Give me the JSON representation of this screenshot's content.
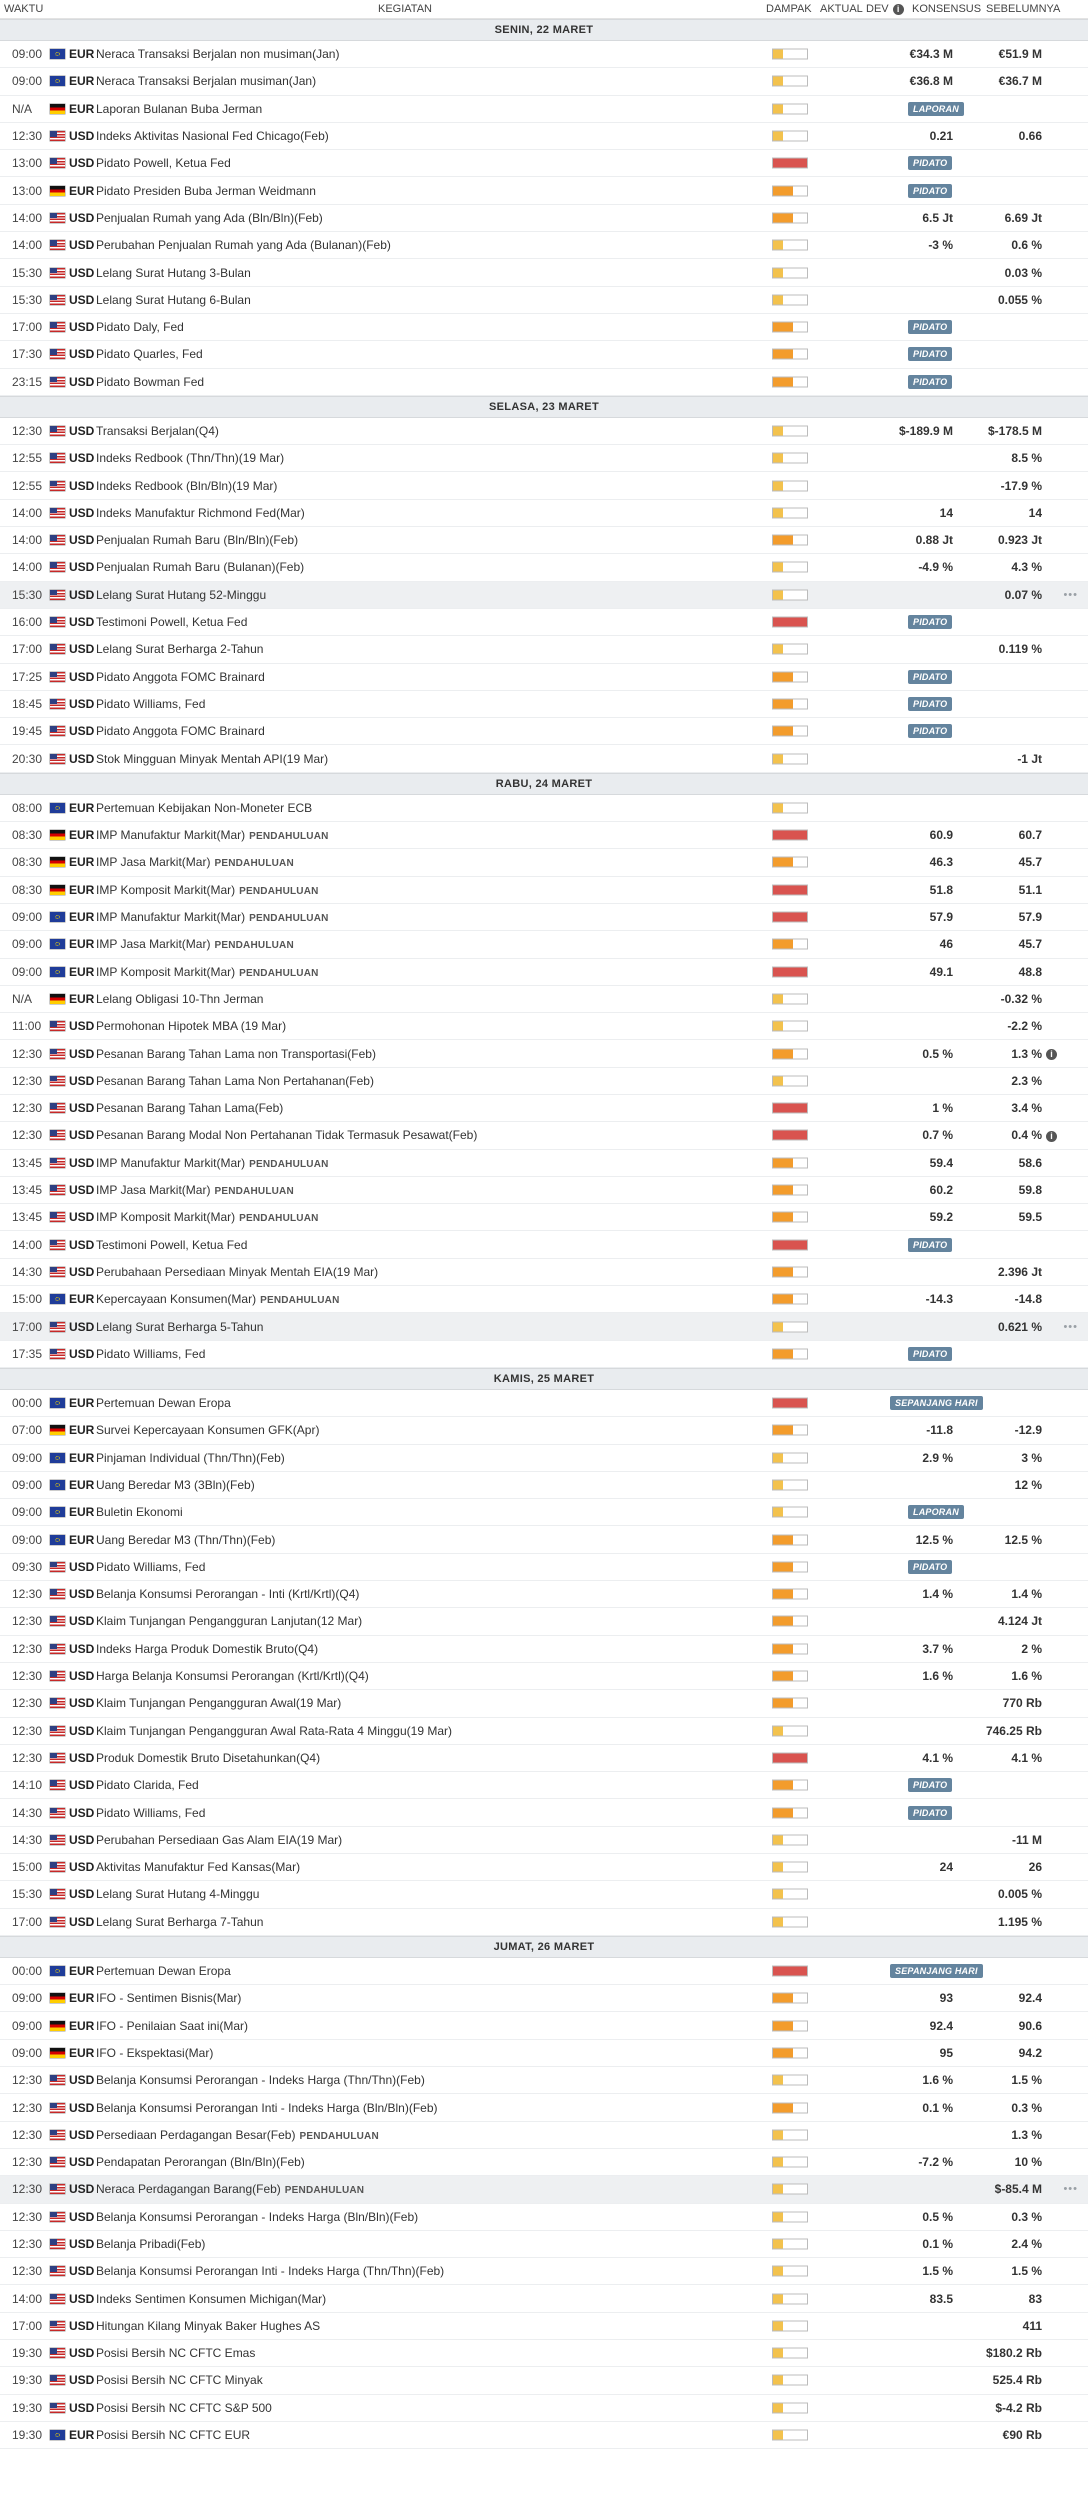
{
  "header": {
    "waktu": "WAKTU",
    "kegiatan": "KEGIATAN",
    "dampak": "DAMPAK",
    "aktual": "AKTUAL",
    "dev": "DEV",
    "konsensus": "KONSENSUS",
    "sebelumnya": "SEBELUMNYA"
  },
  "days": [
    {
      "label": "SENIN, 22 MARET",
      "events": [
        {
          "time": "09:00",
          "flag": "eu",
          "cur": "EUR",
          "name": "Neraca Transaksi Berjalan non musiman(Jan)",
          "impact": "low",
          "cons": "€34.3 M",
          "prev": "€51.9 M"
        },
        {
          "time": "09:00",
          "flag": "eu",
          "cur": "EUR",
          "name": "Neraca Transaksi Berjalan musiman(Jan)",
          "impact": "low",
          "cons": "€36.8 M",
          "prev": "€36.7 M"
        },
        {
          "time": "N/A",
          "flag": "de",
          "cur": "EUR",
          "name": "Laporan Bulanan Buba Jerman",
          "impact": "low",
          "badge": "LAPORAN"
        },
        {
          "time": "12:30",
          "flag": "us",
          "cur": "USD",
          "name": "Indeks Aktivitas Nasional Fed Chicago(Feb)",
          "impact": "low",
          "cons": "0.21",
          "prev": "0.66"
        },
        {
          "time": "13:00",
          "flag": "us",
          "cur": "USD",
          "name": "Pidato Powell, Ketua Fed",
          "impact": "high",
          "badge": "PIDATO"
        },
        {
          "time": "13:00",
          "flag": "de",
          "cur": "EUR",
          "name": "Pidato Presiden Buba Jerman Weidmann",
          "impact": "med",
          "badge": "PIDATO"
        },
        {
          "time": "14:00",
          "flag": "us",
          "cur": "USD",
          "name": "Penjualan Rumah yang Ada (Bln/Bln)(Feb)",
          "impact": "med",
          "cons": "6.5 Jt",
          "prev": "6.69 Jt"
        },
        {
          "time": "14:00",
          "flag": "us",
          "cur": "USD",
          "name": "Perubahan Penjualan Rumah yang Ada (Bulanan)(Feb)",
          "impact": "low",
          "cons": "-3 %",
          "prev": "0.6 %"
        },
        {
          "time": "15:30",
          "flag": "us",
          "cur": "USD",
          "name": "Lelang Surat Hutang 3-Bulan",
          "impact": "low",
          "prev": "0.03 %"
        },
        {
          "time": "15:30",
          "flag": "us",
          "cur": "USD",
          "name": "Lelang Surat Hutang 6-Bulan",
          "impact": "low",
          "prev": "0.055 %"
        },
        {
          "time": "17:00",
          "flag": "us",
          "cur": "USD",
          "name": "Pidato Daly, Fed",
          "impact": "med",
          "badge": "PIDATO"
        },
        {
          "time": "17:30",
          "flag": "us",
          "cur": "USD",
          "name": "Pidato Quarles, Fed",
          "impact": "med",
          "badge": "PIDATO"
        },
        {
          "time": "23:15",
          "flag": "us",
          "cur": "USD",
          "name": "Pidato Bowman Fed",
          "impact": "med",
          "badge": "PIDATO"
        }
      ]
    },
    {
      "label": "SELASA, 23 MARET",
      "events": [
        {
          "time": "12:30",
          "flag": "us",
          "cur": "USD",
          "name": "Transaksi Berjalan(Q4)",
          "impact": "low",
          "cons": "$-189.9 M",
          "prev": "$-178.5 M"
        },
        {
          "time": "12:55",
          "flag": "us",
          "cur": "USD",
          "name": "Indeks Redbook (Thn/Thn)(19 Mar)",
          "impact": "low",
          "prev": "8.5 %"
        },
        {
          "time": "12:55",
          "flag": "us",
          "cur": "USD",
          "name": "Indeks Redbook (Bln/Bln)(19 Mar)",
          "impact": "low",
          "prev": "-17.9 %"
        },
        {
          "time": "14:00",
          "flag": "us",
          "cur": "USD",
          "name": "Indeks Manufaktur Richmond Fed(Mar)",
          "impact": "low",
          "cons": "14",
          "prev": "14"
        },
        {
          "time": "14:00",
          "flag": "us",
          "cur": "USD",
          "name": "Penjualan Rumah Baru (Bln/Bln)(Feb)",
          "impact": "med",
          "cons": "0.88 Jt",
          "prev": "0.923 Jt"
        },
        {
          "time": "14:00",
          "flag": "us",
          "cur": "USD",
          "name": "Penjualan Rumah Baru (Bulanan)(Feb)",
          "impact": "low",
          "cons": "-4.9 %",
          "prev": "4.3 %"
        },
        {
          "time": "15:30",
          "flag": "us",
          "cur": "USD",
          "name": "Lelang Surat Hutang 52-Minggu",
          "impact": "low",
          "prev": "0.07 %",
          "highlight": true,
          "more": "•••"
        },
        {
          "time": "16:00",
          "flag": "us",
          "cur": "USD",
          "name": "Testimoni Powell, Ketua Fed",
          "impact": "high",
          "badge": "PIDATO"
        },
        {
          "time": "17:00",
          "flag": "us",
          "cur": "USD",
          "name": "Lelang Surat Berharga 2-Tahun",
          "impact": "low",
          "prev": "0.119 %"
        },
        {
          "time": "17:25",
          "flag": "us",
          "cur": "USD",
          "name": "Pidato Anggota FOMC Brainard",
          "impact": "med",
          "badge": "PIDATO"
        },
        {
          "time": "18:45",
          "flag": "us",
          "cur": "USD",
          "name": "Pidato Williams, Fed",
          "impact": "med",
          "badge": "PIDATO"
        },
        {
          "time": "19:45",
          "flag": "us",
          "cur": "USD",
          "name": "Pidato Anggota FOMC Brainard",
          "impact": "med",
          "badge": "PIDATO"
        },
        {
          "time": "20:30",
          "flag": "us",
          "cur": "USD",
          "name": "Stok Mingguan Minyak Mentah API(19 Mar)",
          "impact": "low",
          "prev": "-1 Jt"
        }
      ]
    },
    {
      "label": "RABU, 24 MARET",
      "events": [
        {
          "time": "08:00",
          "flag": "eu",
          "cur": "EUR",
          "name": "Pertemuan Kebijakan Non-Moneter ECB",
          "impact": "low"
        },
        {
          "time": "08:30",
          "flag": "de",
          "cur": "EUR",
          "name": "IMP Manufaktur Markit(Mar)",
          "tag": "PENDAHULUAN",
          "impact": "high",
          "cons": "60.9",
          "prev": "60.7"
        },
        {
          "time": "08:30",
          "flag": "de",
          "cur": "EUR",
          "name": "IMP Jasa Markit(Mar)",
          "tag": "PENDAHULUAN",
          "impact": "med",
          "cons": "46.3",
          "prev": "45.7"
        },
        {
          "time": "08:30",
          "flag": "de",
          "cur": "EUR",
          "name": "IMP Komposit Markit(Mar)",
          "tag": "PENDAHULUAN",
          "impact": "high",
          "cons": "51.8",
          "prev": "51.1"
        },
        {
          "time": "09:00",
          "flag": "eu",
          "cur": "EUR",
          "name": "IMP Manufaktur Markit(Mar)",
          "tag": "PENDAHULUAN",
          "impact": "high",
          "cons": "57.9",
          "prev": "57.9"
        },
        {
          "time": "09:00",
          "flag": "eu",
          "cur": "EUR",
          "name": "IMP Jasa Markit(Mar)",
          "tag": "PENDAHULUAN",
          "impact": "med",
          "cons": "46",
          "prev": "45.7"
        },
        {
          "time": "09:00",
          "flag": "eu",
          "cur": "EUR",
          "name": "IMP Komposit Markit(Mar)",
          "tag": "PENDAHULUAN",
          "impact": "high",
          "cons": "49.1",
          "prev": "48.8"
        },
        {
          "time": "N/A",
          "flag": "de",
          "cur": "EUR",
          "name": "Lelang Obligasi 10-Thn Jerman",
          "impact": "low",
          "prev": "-0.32 %"
        },
        {
          "time": "11:00",
          "flag": "us",
          "cur": "USD",
          "name": "Permohonan Hipotek MBA (19 Mar)",
          "impact": "low",
          "prev": "-2.2 %"
        },
        {
          "time": "12:30",
          "flag": "us",
          "cur": "USD",
          "name": "Pesanan Barang Tahan Lama non Transportasi(Feb)",
          "impact": "med",
          "cons": "0.5 %",
          "prev": "1.3 %",
          "info": true
        },
        {
          "time": "12:30",
          "flag": "us",
          "cur": "USD",
          "name": "Pesanan Barang Tahan Lama Non Pertahanan(Feb)",
          "impact": "low",
          "prev": "2.3 %"
        },
        {
          "time": "12:30",
          "flag": "us",
          "cur": "USD",
          "name": "Pesanan Barang Tahan Lama(Feb)",
          "impact": "high",
          "cons": "1 %",
          "prev": "3.4 %"
        },
        {
          "time": "12:30",
          "flag": "us",
          "cur": "USD",
          "name": "Pesanan Barang Modal Non Pertahanan Tidak Termasuk Pesawat(Feb)",
          "impact": "high",
          "cons": "0.7 %",
          "prev": "0.4 %",
          "info": true
        },
        {
          "time": "13:45",
          "flag": "us",
          "cur": "USD",
          "name": "IMP Manufaktur Markit(Mar)",
          "tag": "PENDAHULUAN",
          "impact": "med",
          "cons": "59.4",
          "prev": "58.6"
        },
        {
          "time": "13:45",
          "flag": "us",
          "cur": "USD",
          "name": "IMP Jasa Markit(Mar)",
          "tag": "PENDAHULUAN",
          "impact": "med",
          "cons": "60.2",
          "prev": "59.8"
        },
        {
          "time": "13:45",
          "flag": "us",
          "cur": "USD",
          "name": "IMP Komposit Markit(Mar)",
          "tag": "PENDAHULUAN",
          "impact": "med",
          "cons": "59.2",
          "prev": "59.5"
        },
        {
          "time": "14:00",
          "flag": "us",
          "cur": "USD",
          "name": "Testimoni Powell, Ketua Fed",
          "impact": "high",
          "badge": "PIDATO"
        },
        {
          "time": "14:30",
          "flag": "us",
          "cur": "USD",
          "name": "Perubahaan Persediaan Minyak Mentah EIA(19 Mar)",
          "impact": "med",
          "prev": "2.396 Jt"
        },
        {
          "time": "15:00",
          "flag": "eu",
          "cur": "EUR",
          "name": "Kepercayaan Konsumen(Mar)",
          "tag": "PENDAHULUAN",
          "impact": "med",
          "cons": "-14.3",
          "prev": "-14.8"
        },
        {
          "time": "17:00",
          "flag": "us",
          "cur": "USD",
          "name": "Lelang Surat Berharga 5-Tahun",
          "impact": "low",
          "prev": "0.621 %",
          "highlight": true,
          "more": "•••"
        },
        {
          "time": "17:35",
          "flag": "us",
          "cur": "USD",
          "name": "Pidato Williams, Fed",
          "impact": "med",
          "badge": "PIDATO"
        }
      ]
    },
    {
      "label": "KAMIS, 25 MARET",
      "events": [
        {
          "time": "00:00",
          "flag": "eu",
          "cur": "EUR",
          "name": "Pertemuan Dewan Eropa",
          "impact": "high",
          "badge": "SEPANJANG HARI",
          "wide": true
        },
        {
          "time": "07:00",
          "flag": "de",
          "cur": "EUR",
          "name": "Survei Kepercayaan Konsumen GFK(Apr)",
          "impact": "med",
          "cons": "-11.8",
          "prev": "-12.9"
        },
        {
          "time": "09:00",
          "flag": "eu",
          "cur": "EUR",
          "name": "Pinjaman Individual (Thn/Thn)(Feb)",
          "impact": "low",
          "cons": "2.9 %",
          "prev": "3 %"
        },
        {
          "time": "09:00",
          "flag": "eu",
          "cur": "EUR",
          "name": "Uang Beredar M3 (3Bln)(Feb)",
          "impact": "low",
          "prev": "12 %"
        },
        {
          "time": "09:00",
          "flag": "eu",
          "cur": "EUR",
          "name": "Buletin Ekonomi",
          "impact": "low",
          "badge": "LAPORAN"
        },
        {
          "time": "09:00",
          "flag": "eu",
          "cur": "EUR",
          "name": "Uang Beredar M3 (Thn/Thn)(Feb)",
          "impact": "med",
          "cons": "12.5 %",
          "prev": "12.5 %"
        },
        {
          "time": "09:30",
          "flag": "us",
          "cur": "USD",
          "name": "Pidato Williams, Fed",
          "impact": "med",
          "badge": "PIDATO"
        },
        {
          "time": "12:30",
          "flag": "us",
          "cur": "USD",
          "name": "Belanja Konsumsi Perorangan - Inti (Krtl/Krtl)(Q4)",
          "impact": "med",
          "cons": "1.4 %",
          "prev": "1.4 %"
        },
        {
          "time": "12:30",
          "flag": "us",
          "cur": "USD",
          "name": "Klaim Tunjangan Pengangguran Lanjutan(12 Mar)",
          "impact": "med",
          "prev": "4.124 Jt"
        },
        {
          "time": "12:30",
          "flag": "us",
          "cur": "USD",
          "name": "Indeks Harga Produk Domestik Bruto(Q4)",
          "impact": "med",
          "cons": "3.7 %",
          "prev": "2 %"
        },
        {
          "time": "12:30",
          "flag": "us",
          "cur": "USD",
          "name": "Harga Belanja Konsumsi Perorangan (Krtl/Krtl)(Q4)",
          "impact": "med",
          "cons": "1.6 %",
          "prev": "1.6 %"
        },
        {
          "time": "12:30",
          "flag": "us",
          "cur": "USD",
          "name": "Klaim Tunjangan Pengangguran Awal(19 Mar)",
          "impact": "med",
          "prev": "770 Rb"
        },
        {
          "time": "12:30",
          "flag": "us",
          "cur": "USD",
          "name": "Klaim Tunjangan Pengangguran Awal Rata-Rata 4 Minggu(19 Mar)",
          "impact": "low",
          "prev": "746.25 Rb"
        },
        {
          "time": "12:30",
          "flag": "us",
          "cur": "USD",
          "name": "Produk Domestik Bruto Disetahunkan(Q4)",
          "impact": "high",
          "cons": "4.1 %",
          "prev": "4.1 %"
        },
        {
          "time": "14:10",
          "flag": "us",
          "cur": "USD",
          "name": "Pidato Clarida, Fed",
          "impact": "med",
          "badge": "PIDATO"
        },
        {
          "time": "14:30",
          "flag": "us",
          "cur": "USD",
          "name": "Pidato Williams, Fed",
          "impact": "med",
          "badge": "PIDATO"
        },
        {
          "time": "14:30",
          "flag": "us",
          "cur": "USD",
          "name": "Perubahan Persediaan Gas Alam EIA(19 Mar)",
          "impact": "low",
          "prev": "-11 M"
        },
        {
          "time": "15:00",
          "flag": "us",
          "cur": "USD",
          "name": "Aktivitas Manufaktur Fed Kansas(Mar)",
          "impact": "low",
          "cons": "24",
          "prev": "26"
        },
        {
          "time": "15:30",
          "flag": "us",
          "cur": "USD",
          "name": "Lelang Surat Hutang 4-Minggu",
          "impact": "low",
          "prev": "0.005 %"
        },
        {
          "time": "17:00",
          "flag": "us",
          "cur": "USD",
          "name": "Lelang Surat Berharga 7-Tahun",
          "impact": "low",
          "prev": "1.195 %"
        }
      ]
    },
    {
      "label": "JUMAT, 26 MARET",
      "events": [
        {
          "time": "00:00",
          "flag": "eu",
          "cur": "EUR",
          "name": "Pertemuan Dewan Eropa",
          "impact": "high",
          "badge": "SEPANJANG HARI",
          "wide": true
        },
        {
          "time": "09:00",
          "flag": "de",
          "cur": "EUR",
          "name": "IFO - Sentimen Bisnis(Mar)",
          "impact": "med",
          "cons": "93",
          "prev": "92.4"
        },
        {
          "time": "09:00",
          "flag": "de",
          "cur": "EUR",
          "name": "IFO - Penilaian Saat ini(Mar)",
          "impact": "med",
          "cons": "92.4",
          "prev": "90.6"
        },
        {
          "time": "09:00",
          "flag": "de",
          "cur": "EUR",
          "name": "IFO - Ekspektasi(Mar)",
          "impact": "med",
          "cons": "95",
          "prev": "94.2"
        },
        {
          "time": "12:30",
          "flag": "us",
          "cur": "USD",
          "name": "Belanja Konsumsi Perorangan - Indeks Harga (Thn/Thn)(Feb)",
          "impact": "low",
          "cons": "1.6 %",
          "prev": "1.5 %"
        },
        {
          "time": "12:30",
          "flag": "us",
          "cur": "USD",
          "name": "Belanja Konsumsi Perorangan Inti - Indeks Harga (Bln/Bln)(Feb)",
          "impact": "med",
          "cons": "0.1 %",
          "prev": "0.3 %"
        },
        {
          "time": "12:30",
          "flag": "us",
          "cur": "USD",
          "name": "Persediaan Perdagangan Besar(Feb)",
          "tag": "PENDAHULUAN",
          "impact": "low",
          "prev": "1.3 %"
        },
        {
          "time": "12:30",
          "flag": "us",
          "cur": "USD",
          "name": "Pendapatan Perorangan (Bln/Bln)(Feb)",
          "impact": "low",
          "cons": "-7.2 %",
          "prev": "10 %"
        },
        {
          "time": "12:30",
          "flag": "us",
          "cur": "USD",
          "name": "Neraca Perdagangan Barang(Feb)",
          "tag": "PENDAHULUAN",
          "impact": "low",
          "prev": "$-85.4 M",
          "highlight": true,
          "more": "•••"
        },
        {
          "time": "12:30",
          "flag": "us",
          "cur": "USD",
          "name": "Belanja Konsumsi Perorangan - Indeks Harga (Bln/Bln)(Feb)",
          "impact": "low",
          "cons": "0.5 %",
          "prev": "0.3 %"
        },
        {
          "time": "12:30",
          "flag": "us",
          "cur": "USD",
          "name": "Belanja Pribadi(Feb)",
          "impact": "low",
          "cons": "0.1 %",
          "prev": "2.4 %"
        },
        {
          "time": "12:30",
          "flag": "us",
          "cur": "USD",
          "name": "Belanja Konsumsi Perorangan Inti - Indeks Harga (Thn/Thn)(Feb)",
          "impact": "low",
          "cons": "1.5 %",
          "prev": "1.5 %"
        },
        {
          "time": "14:00",
          "flag": "us",
          "cur": "USD",
          "name": "Indeks Sentimen Konsumen Michigan(Mar)",
          "impact": "low",
          "cons": "83.5",
          "prev": "83"
        },
        {
          "time": "17:00",
          "flag": "us",
          "cur": "USD",
          "name": "Hitungan Kilang Minyak Baker Hughes AS",
          "impact": "low",
          "prev": "411"
        },
        {
          "time": "19:30",
          "flag": "us",
          "cur": "USD",
          "name": "Posisi Bersih NC CFTC Emas",
          "impact": "low",
          "prev": "$180.2 Rb"
        },
        {
          "time": "19:30",
          "flag": "us",
          "cur": "USD",
          "name": "Posisi Bersih NC CFTC Minyak",
          "impact": "low",
          "prev": "525.4 Rb"
        },
        {
          "time": "19:30",
          "flag": "us",
          "cur": "USD",
          "name": "Posisi Bersih NC CFTC S&P 500",
          "impact": "low",
          "prev": "$-4.2 Rb"
        },
        {
          "time": "19:30",
          "flag": "eu",
          "cur": "EUR",
          "name": "Posisi Bersih NC CFTC EUR",
          "impact": "low",
          "prev": "€90 Rb"
        }
      ]
    }
  ]
}
